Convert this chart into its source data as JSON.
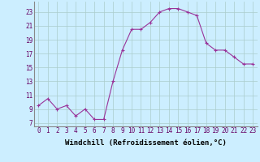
{
  "x": [
    0,
    1,
    2,
    3,
    4,
    5,
    6,
    7,
    8,
    9,
    10,
    11,
    12,
    13,
    14,
    15,
    16,
    17,
    18,
    19,
    20,
    21,
    22,
    23
  ],
  "y": [
    9.5,
    10.5,
    9.0,
    9.5,
    8.0,
    9.0,
    7.5,
    7.5,
    13.0,
    17.5,
    20.5,
    20.5,
    21.5,
    23.0,
    23.5,
    23.5,
    23.0,
    22.5,
    18.5,
    17.5,
    17.5,
    16.5,
    15.5,
    15.5
  ],
  "xlim": [
    -0.5,
    23.5
  ],
  "ylim": [
    6.5,
    24.5
  ],
  "yticks": [
    7,
    9,
    11,
    13,
    15,
    17,
    19,
    21,
    23
  ],
  "xticks": [
    0,
    1,
    2,
    3,
    4,
    5,
    6,
    7,
    8,
    9,
    10,
    11,
    12,
    13,
    14,
    15,
    16,
    17,
    18,
    19,
    20,
    21,
    22,
    23
  ],
  "xlabel": "Windchill (Refroidissement éolien,°C)",
  "line_color": "#993399",
  "marker": "+",
  "bg_color": "#cceeff",
  "grid_color": "#aacccc",
  "tick_fontsize": 5.5,
  "label_fontsize": 6.5
}
